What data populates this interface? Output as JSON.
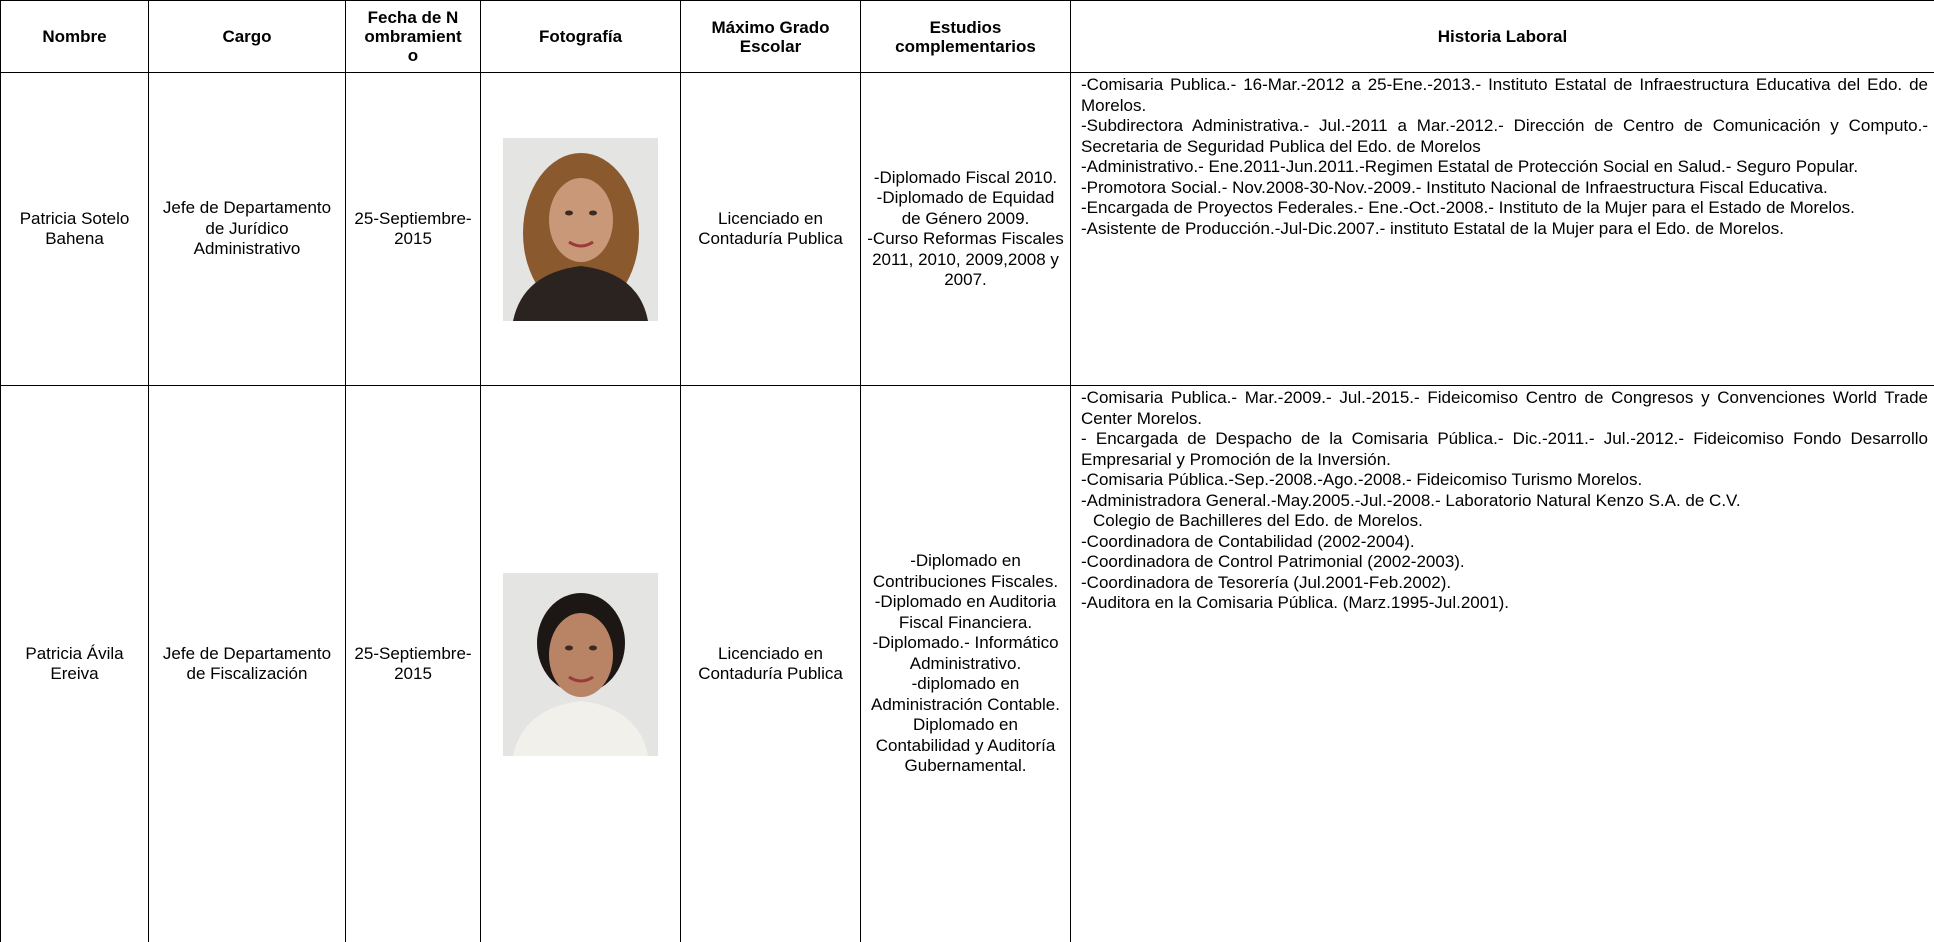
{
  "table": {
    "headers": [
      "Nombre",
      "Cargo",
      "Fecha de Nombramiento",
      "Fotografía",
      "Máximo Grado Escolar",
      "Estudios complementarios",
      "Historia Laboral"
    ],
    "rows": [
      {
        "nombre": "Patricia Sotelo Bahena",
        "cargo": "Jefe de Departamento de Jurídico Administrativo",
        "fecha": "25-Septiembre-2015",
        "grado": "Licenciado en Contaduría Publica",
        "estudios": [
          "-Diplomado Fiscal 2010.",
          "-Diplomado de Equidad de Género 2009.",
          "-Curso Reformas Fiscales 2011, 2010, 2009,2008 y 2007."
        ],
        "historia": [
          "-Comisaria Publica.- 16-Mar.-2012 a 25-Ene.-2013.- Instituto Estatal de Infraestructura Educativa del Edo. de Morelos.",
          "-Subdirectora Administrativa.- Jul.-2011 a Mar.-2012.- Dirección de Centro de Comunicación  y Computo.- Secretaria de Seguridad Publica del Edo. de Morelos",
          "-Administrativo.- Ene.2011-Jun.2011.-Regimen Estatal de Protección Social en Salud.- Seguro Popular.",
          "-Promotora Social.- Nov.2008-30-Nov.-2009.- Instituto Nacional de Infraestructura Fiscal Educativa.",
          "-Encargada de Proyectos Federales.- Ene.-Oct.-2008.- Instituto de la Mujer para el Estado de Morelos.",
          "-Asistente de Producción.-Jul-Dic.2007.- instituto Estatal de la Mujer para el Edo. de Morelos."
        ]
      },
      {
        "nombre": "Patricia Ávila Ereiva",
        "cargo": "Jefe de Departamento de Fiscalización",
        "fecha": "25-Septiembre-2015",
        "grado": "Licenciado en Contaduría Publica",
        "estudios": [
          "-Diplomado en Contribuciones Fiscales.",
          "-Diplomado en Auditoria Fiscal Financiera.",
          "-Diplomado.- Informático Administrativo.",
          "-diplomado en Administración Contable.",
          "Diplomado en Contabilidad y Auditoría Gubernamental."
        ],
        "historia": [
          "-Comisaria Publica.- Mar.-2009.- Jul.-2015.- Fideicomiso Centro de Congresos y Convenciones World Trade Center Morelos.",
          "- Encargada de Despacho de la Comisaria Pública.- Dic.-2011.- Jul.-2012.- Fideicomiso Fondo Desarrollo Empresarial y Promoción de la Inversión.",
          "-Comisaria Pública.-Sep.-2008.-Ago.-2008.- Fideicomiso Turismo Morelos.",
          "-Administradora General.-May.2005.-Jul.-2008.- Laboratorio Natural Kenzo S.A. de C.V.",
          "Colegio de Bachilleres del Edo. de Morelos.",
          "-Coordinadora de Contabilidad (2002-2004).",
          "-Coordinadora de Control Patrimonial (2002-2003).",
          "-Coordinadora de Tesorería (Jul.2001-Feb.2002).",
          "-Auditora en la Comisaria Pública. (Marz.1995-Jul.2001)."
        ]
      }
    ]
  }
}
